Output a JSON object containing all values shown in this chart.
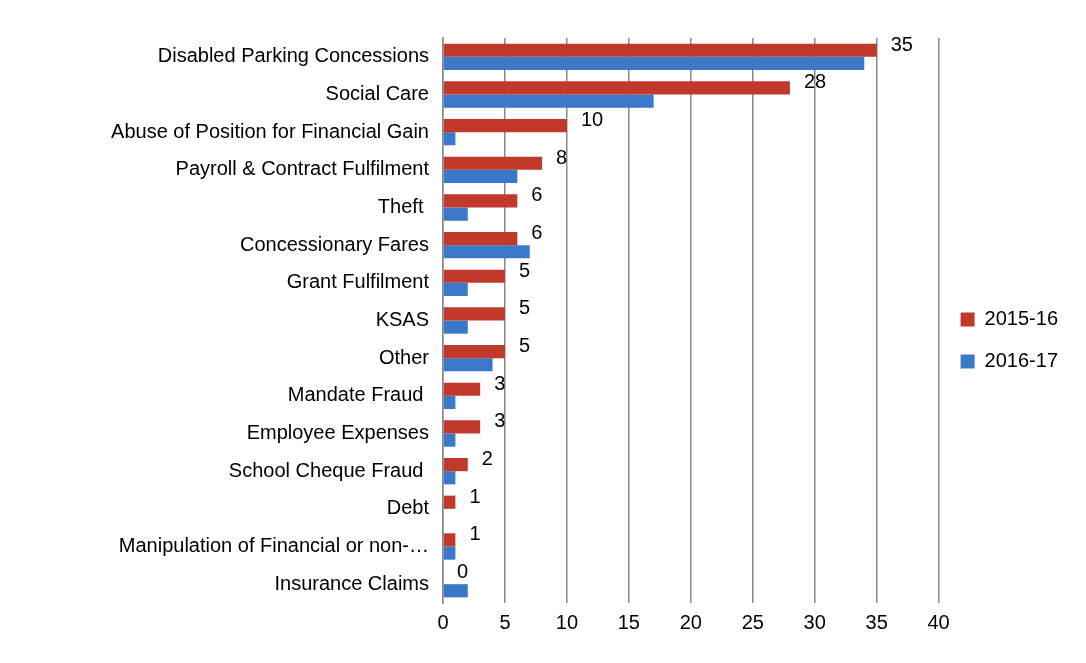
{
  "chart_data": {
    "type": "bar",
    "orientation": "horizontal",
    "categories": [
      "Disabled Parking Concessions",
      "Social Care",
      "Abuse of Position for Financial Gain",
      "Payroll & Contract Fulfilment",
      "Theft ",
      "Concessionary Fares",
      "Grant Fulfilment",
      "KSAS",
      "Other",
      "Mandate Fraud ",
      "Employee Expenses",
      "School Cheque Fraud ",
      "Debt",
      "Manipulation of Financial or non-…",
      "Insurance Claims"
    ],
    "series": [
      {
        "name": "2015-16",
        "color": "#c0392b",
        "values": [
          35,
          28,
          10,
          8,
          6,
          6,
          5,
          5,
          5,
          3,
          3,
          2,
          1,
          1,
          0
        ],
        "value_labels": [
          "35",
          "28",
          "10",
          "8",
          "6",
          "6",
          "5",
          "5",
          "5",
          "3",
          "3",
          "2",
          "1",
          "1",
          "0"
        ]
      },
      {
        "name": "2016-17",
        "color": "#3a78c9",
        "values": [
          34,
          17,
          1,
          6,
          2,
          7,
          2,
          2,
          4,
          1,
          1,
          1,
          0,
          1,
          2
        ]
      }
    ],
    "xlim": [
      0,
      40
    ],
    "xticks": [
      0,
      5,
      10,
      15,
      20,
      25,
      30,
      35,
      40
    ],
    "grid": "x",
    "legend": "right"
  }
}
